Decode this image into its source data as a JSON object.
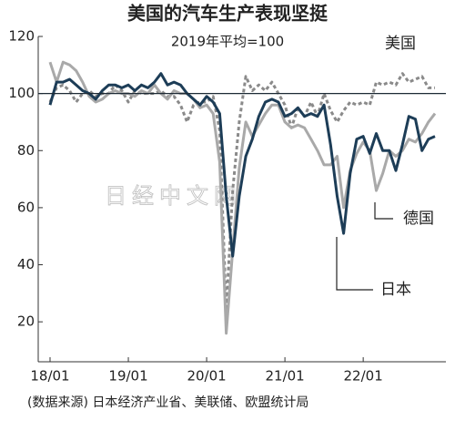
{
  "chart_data": {
    "type": "line",
    "title": "美国的汽车生产表现坚挺",
    "subtitle": "2019年平均=100",
    "source": "(数据来源) 日本经济产业省、美联储、欧盟统计局",
    "watermark": "日经中文网",
    "categories": [
      "18/01",
      null,
      null,
      null,
      null,
      null,
      null,
      null,
      null,
      null,
      null,
      null,
      "19/01",
      null,
      null,
      null,
      null,
      null,
      null,
      null,
      null,
      null,
      null,
      null,
      "20/01",
      null,
      null,
      null,
      null,
      null,
      null,
      null,
      null,
      null,
      null,
      null,
      "21/01",
      null,
      null,
      null,
      null,
      null,
      null,
      null,
      null,
      null,
      null,
      null,
      "22/01",
      null,
      null,
      null,
      null,
      null,
      null,
      null,
      null,
      null,
      null,
      null
    ],
    "reference_line": 100,
    "series": [
      {
        "name": "美国",
        "color": "#8a8a8a",
        "dashed": true,
        "values": [
          97,
          102,
          103,
          101,
          97,
          100,
          101,
          99,
          100,
          100,
          103,
          101,
          97,
          101,
          100,
          100,
          100,
          101,
          99,
          99,
          96,
          90,
          96,
          97,
          97,
          99,
          87,
          24,
          66,
          90,
          106,
          101,
          103,
          101,
          104,
          100,
          96,
          88,
          95,
          92,
          97,
          92,
          100,
          94,
          90,
          94,
          97,
          96,
          97,
          96,
          104,
          103,
          104,
          103,
          107,
          104,
          105,
          106,
          102,
          102
        ]
      },
      {
        "name": "德国",
        "color": "#a9a9a9",
        "dashed": false,
        "values": [
          111,
          104,
          111,
          110,
          108,
          104,
          99,
          97,
          98,
          100,
          101,
          100,
          100,
          99,
          101,
          100,
          103,
          100,
          98,
          101,
          100,
          100,
          98,
          95,
          96,
          93,
          76,
          16,
          45,
          74,
          90,
          85,
          89,
          93,
          96,
          96,
          90,
          88,
          89,
          88,
          84,
          80,
          75,
          75,
          78,
          60,
          73,
          79,
          83,
          80,
          66,
          72,
          80,
          78,
          80,
          84,
          83,
          86,
          90,
          93
        ]
      },
      {
        "name": "日本",
        "color": "#1d3d57",
        "dashed": false,
        "values": [
          96,
          104,
          104,
          105,
          103,
          101,
          100,
          98,
          101,
          103,
          103,
          102,
          103,
          101,
          103,
          102,
          104,
          107,
          103,
          104,
          103,
          100,
          98,
          96,
          99,
          97,
          93,
          64,
          43,
          64,
          78,
          84,
          92,
          97,
          98,
          97,
          92,
          93,
          95,
          92,
          93,
          92,
          96,
          82,
          64,
          51,
          72,
          84,
          85,
          79,
          86,
          80,
          80,
          73,
          82,
          92,
          91,
          80,
          84,
          85
        ]
      }
    ],
    "ylim": [
      6,
      120
    ],
    "yticks": [
      20,
      40,
      60,
      80,
      100,
      120
    ]
  }
}
